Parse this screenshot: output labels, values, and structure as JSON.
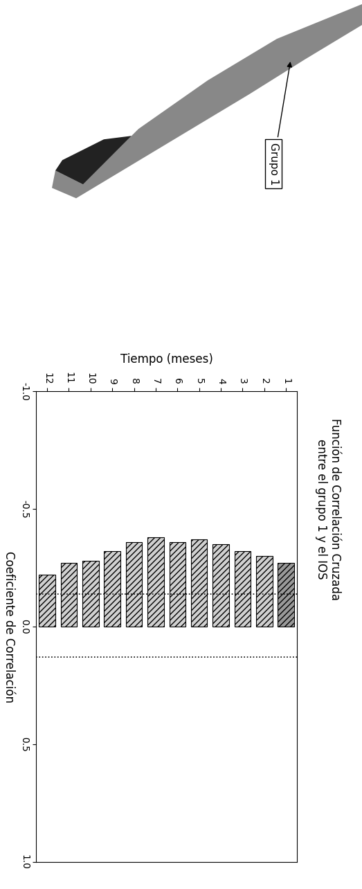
{
  "chart_data": {
    "type": "bar",
    "title": "Función de Correlación Cruzada\nentre el grupo 1 y el IOS",
    "x_label": "Tiempo (meses)",
    "y_label": "Coeficiente de Correlación",
    "annotation": "Grupo 1",
    "categories": [
      "1",
      "2",
      "3",
      "4",
      "5",
      "6",
      "7",
      "8",
      "9",
      "10",
      "11",
      "12"
    ],
    "values": [
      -0.27,
      -0.3,
      -0.32,
      -0.35,
      -0.37,
      -0.36,
      -0.38,
      -0.36,
      -0.32,
      -0.28,
      -0.27,
      -0.22
    ],
    "colors": [
      "#999999",
      "#d0d0d0",
      "#d0d0d0",
      "#d0d0d0",
      "#d0d0d0",
      "#d0d0d0",
      "#d0d0d0",
      "#d0d0d0",
      "#d0d0d0",
      "#d0d0d0",
      "#d0d0d0",
      "#d0d0d0"
    ],
    "significance": [
      -0.14,
      0.13
    ],
    "ylim": [
      -1.0,
      1.0
    ],
    "yticks": [
      {
        "value": -1.0,
        "label": "-1.0"
      },
      {
        "value": -0.5,
        "label": "-0.5"
      },
      {
        "value": 0.0,
        "label": "0.0"
      },
      {
        "value": 0.5,
        "label": "0.5"
      },
      {
        "value": 1.0,
        "label": "1.0"
      }
    ],
    "grid": false
  }
}
